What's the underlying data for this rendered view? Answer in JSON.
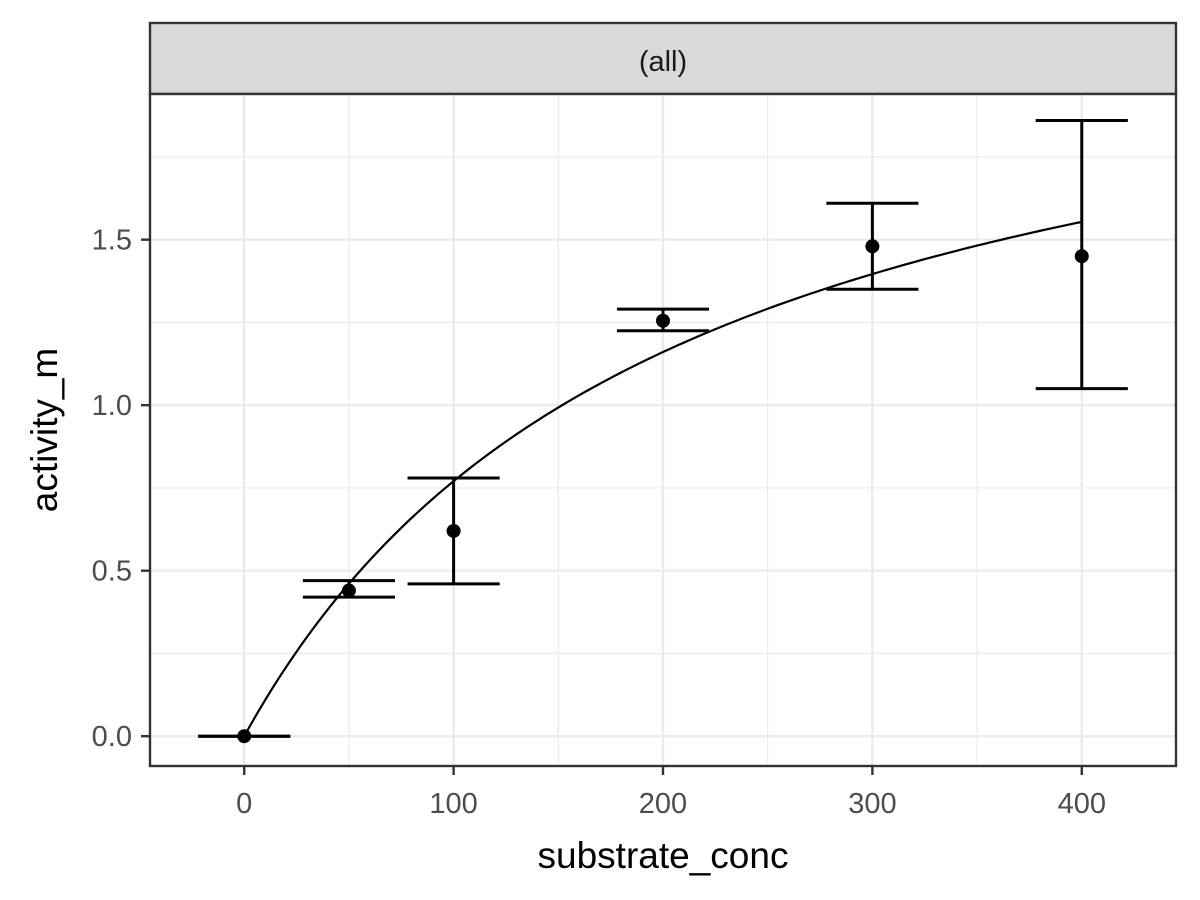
{
  "chart_data": {
    "type": "scatter",
    "facet_label": "(all)",
    "xlabel": "substrate_conc",
    "ylabel": "activity_m",
    "xlim": [
      -45,
      445
    ],
    "ylim": [
      -0.09,
      1.94
    ],
    "x_ticks": [
      0,
      100,
      200,
      300,
      400
    ],
    "x_tick_labels": [
      "0",
      "100",
      "200",
      "300",
      "400"
    ],
    "x_minor": [
      50,
      150,
      250,
      350
    ],
    "y_ticks": [
      0,
      0.5,
      1,
      1.5
    ],
    "y_tick_labels": [
      "0.0",
      "0.5",
      "1.0",
      "1.5"
    ],
    "y_minor": [
      0.25,
      0.75,
      1.25,
      1.75
    ],
    "grid": true,
    "points": [
      {
        "x": 0,
        "y": 0.0,
        "ymin": 0.0,
        "ymax": 0.0
      },
      {
        "x": 50,
        "y": 0.44,
        "ymin": 0.42,
        "ymax": 0.47
      },
      {
        "x": 100,
        "y": 0.62,
        "ymin": 0.46,
        "ymax": 0.78
      },
      {
        "x": 200,
        "y": 1.255,
        "ymin": 1.225,
        "ymax": 1.29
      },
      {
        "x": 300,
        "y": 1.48,
        "ymin": 1.35,
        "ymax": 1.61
      },
      {
        "x": 400,
        "y": 1.45,
        "ymin": 1.05,
        "ymax": 1.86
      }
    ],
    "errorbar_halfwidth": 22,
    "fit": {
      "model": "michaelis-menten",
      "vmax": 2.35,
      "km": 205,
      "x_range": [
        0,
        400
      ]
    }
  }
}
